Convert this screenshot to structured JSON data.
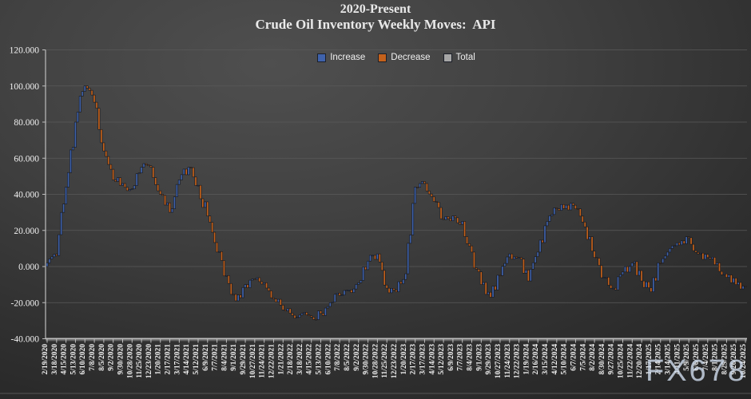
{
  "title": {
    "line1": "2020-Present",
    "line2": "Crude Oil Inventory Weekly Moves:  API"
  },
  "legend": {
    "items": [
      {
        "label": "Increase",
        "color": "#3f62ab"
      },
      {
        "label": "Decrease",
        "color": "#c4611b"
      },
      {
        "label": "Total",
        "color": "#a6a6a6"
      }
    ]
  },
  "watermark": "FX678",
  "chart_data": {
    "type": "waterfall",
    "title": "2020-Present Crude Oil Inventory Weekly Moves: API",
    "legend": [
      "Increase",
      "Decrease",
      "Total"
    ],
    "legend_position": "top-center",
    "grid": "horizontal",
    "ylim": [
      -40,
      120
    ],
    "ytick_values": [
      120,
      100,
      80,
      60,
      40,
      20,
      0,
      -20,
      -40
    ],
    "ytick_labels": [
      "120.000",
      "100.000",
      "80.000",
      "60.000",
      "40.000",
      "20.000",
      "0.000",
      "-20.000",
      "-40.000"
    ],
    "colors": {
      "increase": "#3f62ab",
      "decrease": "#c4611b",
      "total": "#a6a6a6",
      "gridline": "#5a5a5a",
      "axis": "#bdbdbd",
      "label_text": "#f1f1f1"
    },
    "categories": [
      "2/19/2020",
      "3/18/2020",
      "4/15/2020",
      "5/13/2020",
      "6/10/2020",
      "7/8/2020",
      "8/5/2020",
      "9/2/2020",
      "9/30/2020",
      "10/28/2020",
      "11/25/2020",
      "12/23/2020",
      "1/20/2021",
      "2/17/2021",
      "3/17/2021",
      "4/14/2021",
      "5/12/2021",
      "6/9/2021",
      "7/7/2021",
      "8/4/2021",
      "9/1/2021",
      "9/29/2021",
      "10/27/2021",
      "11/24/2021",
      "12/22/2021",
      "1/21/2022",
      "2/18/2022",
      "3/18/2022",
      "4/15/2022",
      "5/13/2022",
      "6/10/2022",
      "7/8/2022",
      "8/5/2022",
      "9/2/2022",
      "9/30/2022",
      "10/28/2022",
      "11/25/2022",
      "12/23/2022",
      "1/20/2023",
      "2/17/2023",
      "3/17/2023",
      "4/14/2023",
      "5/12/2023",
      "6/9/2023",
      "7/7/2023",
      "8/4/2023",
      "9/1/2023",
      "9/29/2023",
      "10/27/2023",
      "11/24/2023",
      "12/22/2023",
      "1/19/2024",
      "2/16/2024",
      "3/15/2024",
      "4/12/2024",
      "5/10/2024",
      "6/7/2024",
      "7/5/2024",
      "8/2/2024",
      "8/30/2024",
      "9/27/2024",
      "10/25/2024",
      "11/22/2024",
      "12/20/2024",
      "1/17/2025",
      "2/14/2025",
      "3/14/2025",
      "4/11/2025",
      "5/9/2025",
      "6/6/2025",
      "7/4/2025",
      "8/1/2025",
      "8/29/2025",
      "9/26/2025",
      "10/24/2025"
    ],
    "cumulative_at_ticks": [
      2,
      6,
      44,
      80,
      100,
      91,
      64,
      48,
      46,
      43,
      55,
      55,
      40,
      30,
      48,
      55,
      45,
      28,
      8,
      -5,
      -19,
      -10,
      -7,
      -9,
      -18,
      -24,
      -27,
      -26,
      -28,
      -26,
      -20,
      -16,
      -13,
      -9,
      3,
      7,
      -12,
      -14,
      -4,
      44,
      46,
      36,
      26,
      28,
      25,
      8,
      -10,
      -17,
      -5,
      7,
      5,
      -8,
      8,
      25,
      32,
      34,
      32,
      22,
      5,
      -6,
      -12,
      -3,
      2,
      -8,
      -14,
      2,
      10,
      12,
      16,
      7,
      5,
      2,
      -6,
      -10,
      -11
    ],
    "render_hints": {
      "weeks_per_tick": 4,
      "bar_count": 297,
      "jitter_amplitude": 2.2,
      "seed": 20200219
    }
  }
}
